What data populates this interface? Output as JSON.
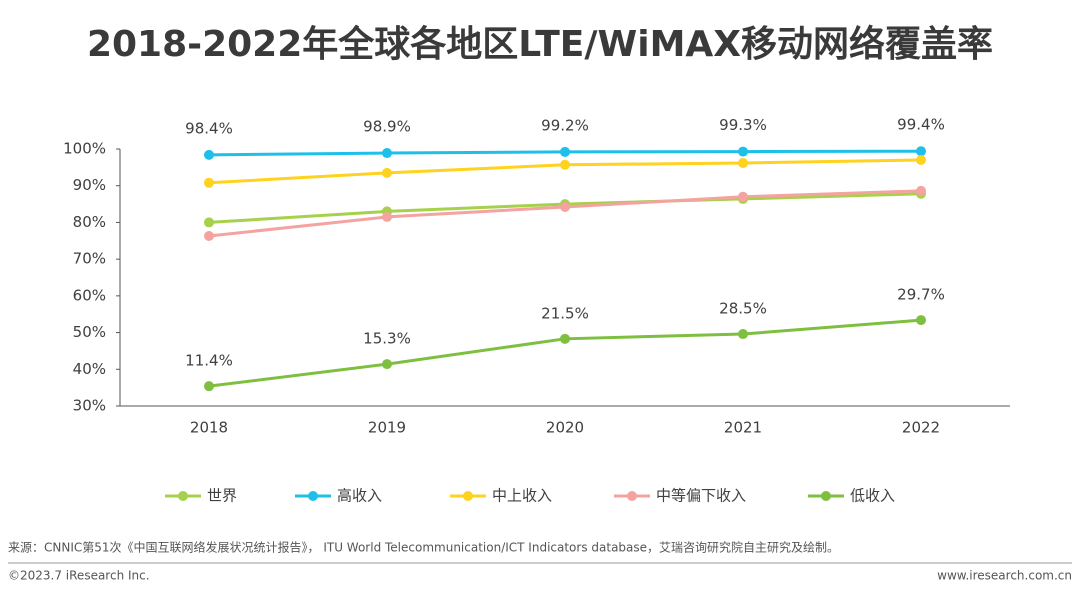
{
  "chart_data": {
    "type": "line",
    "title": "2018-2022年全球各地区LTE/WiMAX移动网络覆盖率",
    "categories": [
      "2018",
      "2019",
      "2020",
      "2021",
      "2022"
    ],
    "series": [
      {
        "name": "世界",
        "color": "#a6d14a",
        "values": [
          80,
          83,
          85,
          86.4,
          87.8
        ]
      },
      {
        "name": "高收入",
        "color": "#1ec0ea",
        "values": [
          98.4,
          98.9,
          99.2,
          99.3,
          99.4
        ],
        "value_labels": [
          "98.4%",
          "98.9%",
          "99.2%",
          "99.3%",
          "99.4%"
        ]
      },
      {
        "name": "中上收入",
        "color": "#ffd21f",
        "values": [
          90.8,
          93.5,
          95.7,
          96.2,
          97
        ]
      },
      {
        "name": "中等偏下收入",
        "color": "#f4a3a0",
        "values": [
          76.3,
          81.5,
          84.2,
          87,
          88.6
        ]
      },
      {
        "name": "低收入",
        "color": "#7ebf3f",
        "values": [
          35.4,
          41.4,
          48.3,
          49.6,
          53.4
        ]
      }
    ],
    "annotations": [
      "11.4%",
      "15.3%",
      "21.5%",
      "28.5%",
      "29.7%"
    ],
    "ylim": [
      30,
      100
    ],
    "yticks": [
      {
        "value": 30,
        "label": "30%"
      },
      {
        "value": 40,
        "label": "40%"
      },
      {
        "value": 50,
        "label": "50%"
      },
      {
        "value": 60,
        "label": "60%"
      },
      {
        "value": 70,
        "label": "70%"
      },
      {
        "value": 80,
        "label": "80%"
      },
      {
        "value": 90,
        "label": "90%"
      },
      {
        "value": 100,
        "label": "100%"
      }
    ],
    "grid": false,
    "legend": "bottom"
  },
  "source": "来源：CNNIC第51次《中国互联网络发展状况统计报告》， ITU World Telecommunication/ICT Indicators database，艾瑞咨询研究院自主研究及绘制。",
  "copyright": "©2023.7 iResearch Inc.",
  "website": "www.iresearch.com.cn"
}
